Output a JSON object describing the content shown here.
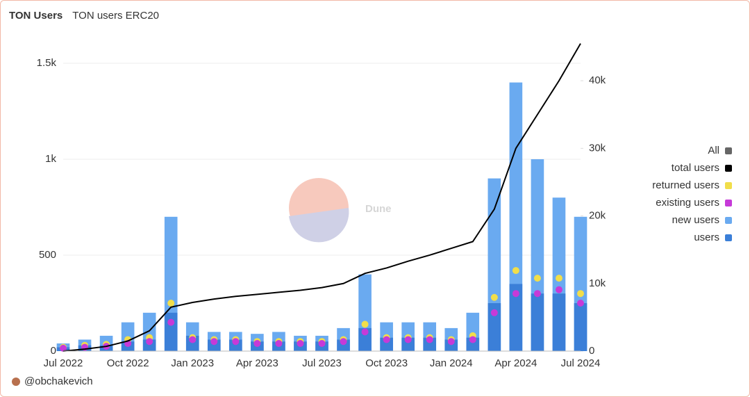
{
  "chart_data": {
    "type": "combo",
    "title": "TON Users",
    "subtitle": "TON users ERC20",
    "watermark": "Dune",
    "credit": "@obchakevich",
    "legend_toggle": "All",
    "categories": [
      "Jul 2022",
      null,
      null,
      "Oct 2022",
      null,
      null,
      "Jan 2023",
      null,
      null,
      "Apr 2023",
      null,
      null,
      "Jul 2023",
      null,
      null,
      "Oct 2023",
      null,
      null,
      "Jan 2024",
      null,
      null,
      "Apr 2024",
      null,
      null,
      "Jul 2024"
    ],
    "series": [
      {
        "name": "total users",
        "color": "#000000",
        "kind": "line",
        "axis": "y2",
        "values": [
          0,
          300,
          700,
          1500,
          3000,
          6500,
          7200,
          7700,
          8100,
          8400,
          8700,
          9000,
          9400,
          10000,
          11500,
          12300,
          13300,
          14200,
          15200,
          16200,
          21000,
          30000,
          35000,
          40000,
          45500
        ]
      },
      {
        "name": "returned users",
        "color": "#f1de4a",
        "kind": "dot",
        "values": [
          20,
          30,
          35,
          60,
          70,
          250,
          70,
          60,
          60,
          50,
          50,
          50,
          50,
          60,
          140,
          70,
          70,
          70,
          60,
          80,
          280,
          420,
          380,
          380,
          300
        ]
      },
      {
        "name": "existing users",
        "color": "#c63ad8",
        "kind": "dot",
        "values": [
          15,
          20,
          25,
          40,
          50,
          150,
          60,
          50,
          50,
          40,
          40,
          40,
          40,
          50,
          100,
          60,
          60,
          60,
          50,
          60,
          200,
          300,
          300,
          320,
          250
        ]
      },
      {
        "name": "new users",
        "color": "#6aaaf0",
        "kind": "bar",
        "values": [
          40,
          60,
          80,
          150,
          200,
          700,
          150,
          100,
          100,
          90,
          100,
          80,
          80,
          120,
          400,
          150,
          150,
          150,
          120,
          200,
          900,
          1400,
          1000,
          800,
          700
        ]
      },
      {
        "name": "users",
        "color": "#3b7fd8",
        "kind": "bar",
        "values": [
          20,
          30,
          30,
          50,
          60,
          200,
          80,
          60,
          60,
          50,
          50,
          50,
          50,
          60,
          120,
          70,
          70,
          70,
          60,
          70,
          250,
          350,
          300,
          300,
          250
        ]
      }
    ],
    "ylim": [
      0,
      1645
    ],
    "yticks": [
      0,
      500,
      {
        "value": 1000,
        "label": "1k"
      },
      {
        "value": 1500,
        "label": "1.5k"
      }
    ],
    "y2lim": [
      0,
      46700
    ],
    "y2ticks": [
      0,
      {
        "value": 10000,
        "label": "10k"
      },
      {
        "value": 20000,
        "label": "20k"
      },
      {
        "value": 30000,
        "label": "30k"
      },
      {
        "value": 40000,
        "label": "40k"
      }
    ],
    "grid": true,
    "legend": "right"
  }
}
